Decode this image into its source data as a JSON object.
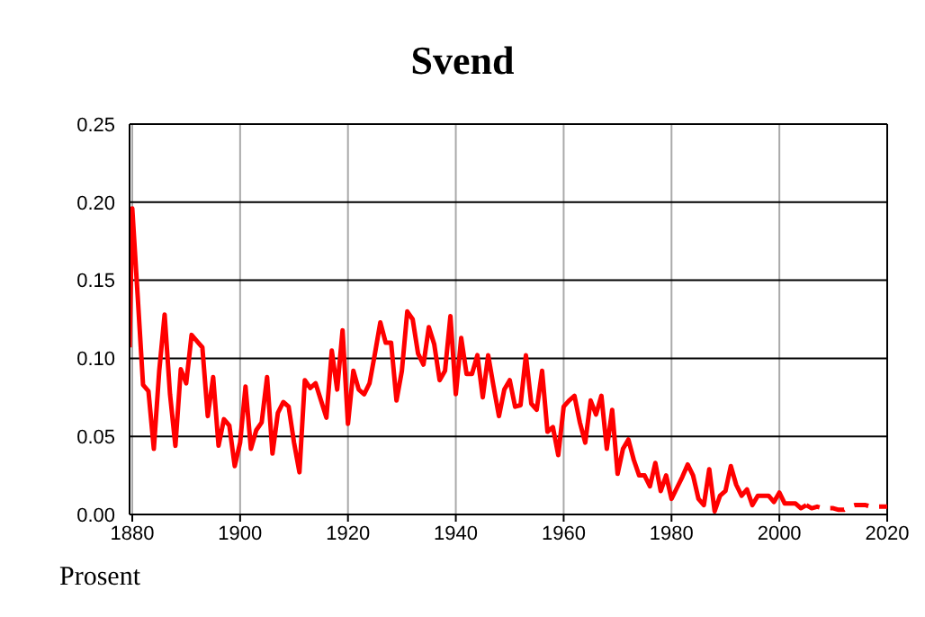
{
  "chart_data": {
    "type": "line",
    "title": "Svend",
    "ylabel": "Prosent",
    "xlim": [
      1879.5,
      2020
    ],
    "xticks": [
      1880,
      1900,
      1920,
      1940,
      1960,
      1980,
      2000,
      2020
    ],
    "ylim": [
      0,
      0.25
    ],
    "yticks": [
      {
        "value": 0,
        "label": "0.00"
      },
      {
        "value": 0.05,
        "label": "0.05"
      },
      {
        "value": 0.1,
        "label": "0.10"
      },
      {
        "value": 0.15,
        "label": "0.15"
      },
      {
        "value": 0.2,
        "label": "0.20"
      },
      {
        "value": 0.25,
        "label": "0.25"
      }
    ],
    "grid": true,
    "marker": "none",
    "series": [
      {
        "color": "#ff0000",
        "line_style": "solid",
        "x": [
          1879.5,
          1880,
          1881,
          1882,
          1883,
          1884,
          1885,
          1886,
          1887,
          1888,
          1889,
          1890,
          1891,
          1892,
          1893,
          1894,
          1895,
          1896,
          1897,
          1898,
          1899,
          1900,
          1901,
          1902,
          1903,
          1904,
          1905,
          1906,
          1907,
          1908,
          1909,
          1910,
          1911,
          1912,
          1913,
          1914,
          1915,
          1916,
          1917,
          1918,
          1919,
          1920,
          1921,
          1922,
          1923,
          1924,
          1925,
          1926,
          1927,
          1928,
          1929,
          1930,
          1931,
          1932,
          1933,
          1934,
          1935,
          1936,
          1937,
          1938,
          1939,
          1940,
          1941,
          1942,
          1943,
          1944,
          1945,
          1946,
          1947,
          1948,
          1949,
          1950,
          1951,
          1952,
          1953,
          1954,
          1955,
          1956,
          1957,
          1958,
          1959,
          1960,
          1961,
          1962,
          1963,
          1964,
          1965,
          1966,
          1967,
          1968,
          1969,
          1970,
          1971,
          1972,
          1973,
          1974,
          1975,
          1976,
          1977,
          1978,
          1979,
          1980,
          1981,
          1982,
          1983,
          1984,
          1985,
          1986,
          1987,
          1988,
          1989,
          1990,
          1991,
          1992,
          1993,
          1994,
          1995,
          1996,
          1997,
          1998,
          1999,
          2000,
          2001,
          2002,
          2003,
          2004,
          2005
        ],
        "values": [
          0.107,
          0.196,
          0.14,
          0.083,
          0.079,
          0.042,
          0.092,
          0.128,
          0.077,
          0.044,
          0.093,
          0.084,
          0.115,
          0.111,
          0.107,
          0.063,
          0.088,
          0.044,
          0.061,
          0.057,
          0.031,
          0.046,
          0.082,
          0.042,
          0.054,
          0.059,
          0.088,
          0.039,
          0.065,
          0.072,
          0.069,
          0.046,
          0.027,
          0.086,
          0.081,
          0.084,
          0.073,
          0.062,
          0.105,
          0.08,
          0.118,
          0.058,
          0.092,
          0.08,
          0.077,
          0.084,
          0.103,
          0.123,
          0.11,
          0.11,
          0.073,
          0.092,
          0.13,
          0.125,
          0.103,
          0.096,
          0.12,
          0.109,
          0.086,
          0.092,
          0.127,
          0.077,
          0.113,
          0.09,
          0.09,
          0.102,
          0.075,
          0.102,
          0.082,
          0.063,
          0.08,
          0.086,
          0.069,
          0.07,
          0.102,
          0.071,
          0.067,
          0.092,
          0.053,
          0.056,
          0.038,
          0.069,
          0.073,
          0.076,
          0.059,
          0.046,
          0.073,
          0.064,
          0.076,
          0.042,
          0.067,
          0.026,
          0.042,
          0.048,
          0.035,
          0.025,
          0.025,
          0.018,
          0.033,
          0.015,
          0.025,
          0.01,
          0.017,
          0.024,
          0.032,
          0.025,
          0.01,
          0.006,
          0.029,
          0.002,
          0.012,
          0.015,
          0.031,
          0.019,
          0.012,
          0.016,
          0.006,
          0.012,
          0.012,
          0.012,
          0.008,
          0.014,
          0.007,
          0.007,
          0.007,
          0.004,
          0.006
        ]
      },
      {
        "color": "#ff0000",
        "line_style": "dashed",
        "x": [
          2005,
          2006,
          2007,
          2008,
          2009,
          2010,
          2011,
          2012,
          2013,
          2014,
          2015,
          2016,
          2017,
          2018,
          2019,
          2020
        ],
        "values": [
          0.006,
          0.004,
          0.005,
          0.004,
          0.004,
          0.004,
          0.003,
          0.003,
          0.005,
          0.006,
          0.006,
          0.006,
          0.005,
          0.005,
          0.005,
          0.005
        ]
      }
    ]
  }
}
